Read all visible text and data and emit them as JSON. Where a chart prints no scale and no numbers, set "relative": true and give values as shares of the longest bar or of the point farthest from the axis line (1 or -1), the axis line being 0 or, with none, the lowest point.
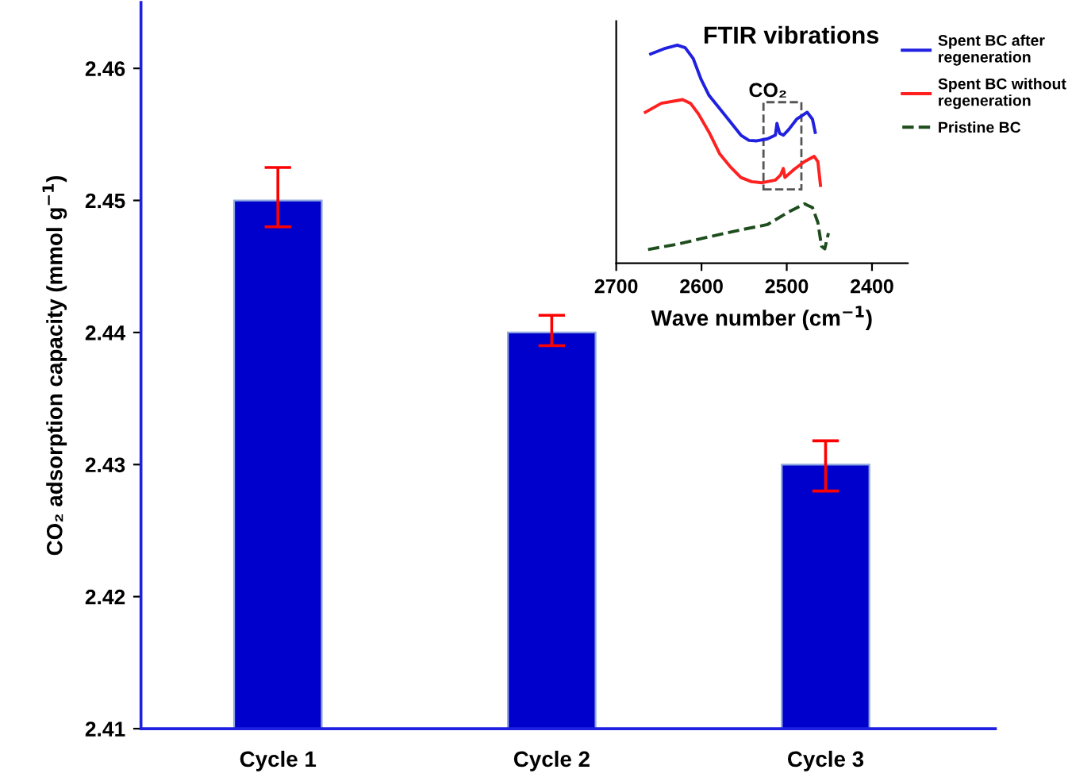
{
  "chart_data": [
    {
      "type": "bar",
      "ylabel": "CO₂ adsorption capacity (mmol g$^{−1}$)",
      "categories": [
        "Cycle 1",
        "Cycle 2",
        "Cycle 3"
      ],
      "values": [
        2.45,
        2.44,
        2.43
      ],
      "color": "#0000cc",
      "errors": [
        [
          2.448,
          2.4525
        ],
        [
          2.439,
          2.4413
        ],
        [
          2.428,
          2.4318
        ]
      ],
      "ylim": [
        2.41,
        2.465
      ],
      "yticks": [
        2.41,
        2.42,
        2.43,
        2.44,
        2.45,
        2.46
      ],
      "grid": false
    },
    {
      "type": "line",
      "title": "FTIR vibrations",
      "xlabel": "Wave number (cm$^{−1}$)",
      "relative": true,
      "legend": "right",
      "tick_labels": "x",
      "xlim": [
        2700,
        2358
      ],
      "xticks": [
        2700,
        2600,
        2500,
        2400
      ],
      "annotations": [
        "CO₂"
      ],
      "series": [
        {
          "name": "Spent BC after\nregeneration",
          "color": "#2020e0",
          "line_style": "solid",
          "x": [
            2659.6,
            2644.0,
            2628.4,
            2619.1,
            2609.8,
            2600.4,
            2591.1,
            2578.7,
            2566.2,
            2553.8,
            2544.4,
            2535.1,
            2522.7,
            2513.3,
            2511.5,
            2508.3,
            2504.0,
            2497.8,
            2488.4,
            2476.0,
            2469.8,
            2466.6
          ],
          "values": [
            0.959,
            0.983,
            1,
            0.988,
            0.939,
            0.842,
            0.769,
            0.709,
            0.648,
            0.587,
            0.563,
            0.561,
            0.57,
            0.587,
            0.641,
            0.595,
            0.587,
            0.612,
            0.66,
            0.692,
            0.66,
            0.6
          ]
        },
        {
          "name": "Spent BC without\nregeneration",
          "color": "#ff2020",
          "line_style": "solid",
          "x": [
            2665.8,
            2647.1,
            2622.2,
            2612.9,
            2603.5,
            2591.1,
            2578.7,
            2566.2,
            2553.8,
            2541.3,
            2528.9,
            2513.3,
            2507.1,
            2504.0,
            2502.1,
            2491.5,
            2479.1,
            2467.9,
            2463.5,
            2460.4
          ],
          "values": [
            0.692,
            0.733,
            0.75,
            0.733,
            0.684,
            0.6,
            0.502,
            0.442,
            0.393,
            0.374,
            0.369,
            0.381,
            0.405,
            0.434,
            0.393,
            0.43,
            0.466,
            0.49,
            0.466,
            0.357
          ]
        },
        {
          "name": "Pristine BC",
          "color": "#1e4d1e",
          "line_style": "dashed",
          "x": [
            2662.7,
            2628.4,
            2591.1,
            2553.8,
            2522.7,
            2497.8,
            2479.1,
            2469.8,
            2463.5,
            2459.2,
            2455.4,
            2451.1
          ],
          "values": [
            0.063,
            0.087,
            0.121,
            0.153,
            0.177,
            0.235,
            0.272,
            0.255,
            0.187,
            0.078,
            0.066,
            0.138
          ]
        }
      ]
    }
  ]
}
